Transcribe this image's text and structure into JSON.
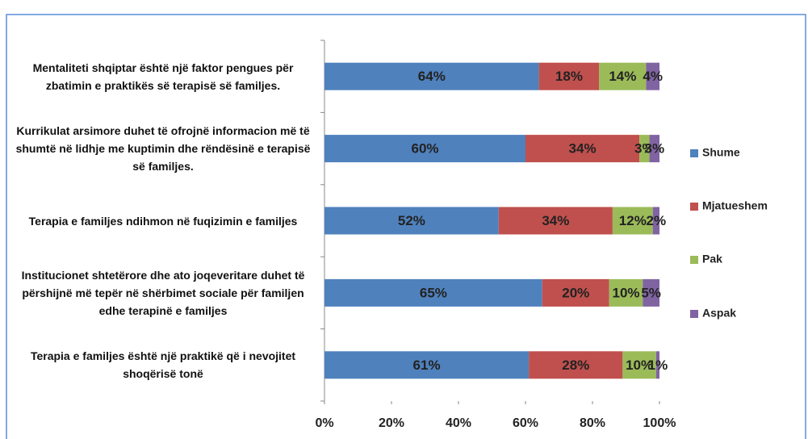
{
  "chart_data": {
    "type": "bar",
    "orientation": "horizontal",
    "stacked": true,
    "categories": [
      "Mentaliteti shqiptar është një faktor pengues për zbatimin e praktikës së terapisë së familjes.",
      "Kurrikulat arsimore  duhet të ofrojnë informacion më të shumtë në lidhje me kuptimin dhe rëndësinë e terapisë së familjes.",
      "Terapia e familjes ndihmon në fuqizimin e familjes",
      "Institucionet shtetërore dhe ato joqeveritare duhet të përshijnë më tepër në shërbimet sociale për familjen edhe  terapinë e familjes",
      "Terapia e familjes është një praktikë që i nevojitet shoqërisë tonë"
    ],
    "series": [
      {
        "name": "Shume",
        "color": "#4f81bd",
        "values": [
          64,
          60,
          52,
          65,
          61
        ],
        "value_labels": [
          "64%",
          "60%",
          "52%",
          "65%",
          "61%"
        ]
      },
      {
        "name": "Mjatueshem",
        "color": "#c0504d",
        "values": [
          18,
          34,
          34,
          20,
          28
        ],
        "value_labels": [
          "18%",
          "34%",
          "34%",
          "20%",
          "28%"
        ]
      },
      {
        "name": "Pak",
        "color": "#9bbb59",
        "values": [
          14,
          3,
          12,
          10,
          10
        ],
        "value_labels": [
          "14%",
          "3%",
          "12%",
          "10%",
          "10%"
        ]
      },
      {
        "name": "Aspak",
        "color": "#8064a2",
        "values": [
          4,
          3,
          2,
          5,
          1
        ],
        "value_labels": [
          "4%",
          "3%",
          "2%",
          "5%",
          "1%"
        ]
      }
    ],
    "xlim": [
      0,
      100
    ],
    "xticks": [
      {
        "value": 0,
        "label": "0%"
      },
      {
        "value": 20,
        "label": "20%"
      },
      {
        "value": 40,
        "label": "40%"
      },
      {
        "value": 60,
        "label": "60%"
      },
      {
        "value": 80,
        "label": "80%"
      },
      {
        "value": 100,
        "label": "100%"
      }
    ],
    "legend": "right",
    "grid": false
  }
}
